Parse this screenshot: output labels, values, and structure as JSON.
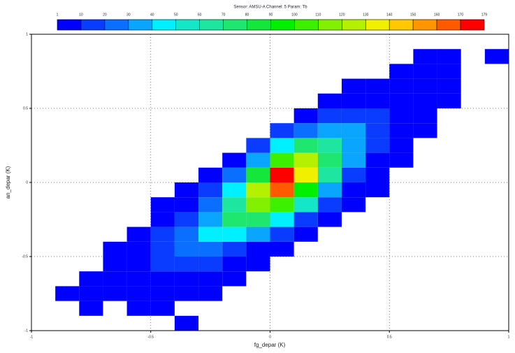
{
  "chart_data": {
    "type": "heatmap2d",
    "title": "Sensor: AMSU-A Channel: 5 Param: Tb",
    "x_label": "fg_depar (K)",
    "y_label": "an_depar (K)",
    "xlim": [
      -1,
      1
    ],
    "ylim": [
      -1,
      1
    ],
    "xticks": [
      -1,
      -0.5,
      0,
      0.5,
      1
    ],
    "yticks": [
      -1,
      -0.5,
      0,
      0.5,
      1
    ],
    "grid": true,
    "x_edges": [
      -1,
      -0.9,
      -0.8,
      -0.7,
      -0.6,
      -0.5,
      -0.4,
      -0.3,
      -0.2,
      -0.1,
      0,
      0.1,
      0.2,
      0.3,
      0.4,
      0.5,
      0.6,
      0.7,
      0.8,
      0.9,
      1
    ],
    "y_edges": [
      -1,
      -0.9,
      -0.8,
      -0.7,
      -0.6,
      -0.5,
      -0.4,
      -0.3,
      -0.2,
      -0.1,
      0,
      0.1,
      0.2,
      0.3,
      0.4,
      0.5,
      0.6,
      0.7,
      0.8,
      0.9,
      1
    ],
    "z": [
      [
        0,
        0,
        0,
        0,
        0,
        0,
        1,
        0,
        0,
        0,
        0,
        0,
        0,
        0,
        0,
        0,
        0,
        0,
        0,
        0
      ],
      [
        0,
        0,
        1,
        0,
        1,
        1,
        0,
        0,
        0,
        0,
        0,
        0,
        0,
        0,
        0,
        0,
        0,
        0,
        0,
        0
      ],
      [
        0,
        1,
        2,
        3,
        4,
        3,
        2,
        1,
        0,
        0,
        0,
        0,
        0,
        0,
        0,
        0,
        0,
        0,
        0,
        0
      ],
      [
        0,
        0,
        2,
        4,
        6,
        8,
        6,
        3,
        1,
        0,
        0,
        0,
        0,
        0,
        0,
        0,
        0,
        0,
        0,
        0
      ],
      [
        0,
        0,
        0,
        3,
        8,
        12,
        14,
        10,
        5,
        2,
        0,
        0,
        0,
        0,
        0,
        0,
        0,
        0,
        0,
        0
      ],
      [
        0,
        0,
        0,
        1,
        6,
        14,
        22,
        25,
        16,
        8,
        3,
        0,
        0,
        0,
        0,
        0,
        0,
        0,
        0,
        0
      ],
      [
        0,
        0,
        0,
        0,
        3,
        10,
        24,
        40,
        45,
        30,
        12,
        4,
        0,
        0,
        0,
        0,
        0,
        0,
        0,
        0
      ],
      [
        0,
        0,
        0,
        0,
        0,
        5,
        15,
        38,
        70,
        75,
        45,
        15,
        4,
        0,
        0,
        0,
        0,
        0,
        0,
        0
      ],
      [
        0,
        0,
        0,
        0,
        0,
        2,
        8,
        22,
        60,
        110,
        100,
        50,
        15,
        3,
        0,
        0,
        0,
        0,
        0,
        0
      ],
      [
        0,
        0,
        0,
        0,
        0,
        0,
        4,
        12,
        40,
        120,
        160,
        90,
        30,
        8,
        2,
        0,
        0,
        0,
        0,
        0
      ],
      [
        0,
        0,
        0,
        0,
        0,
        0,
        0,
        5,
        20,
        80,
        170,
        130,
        60,
        18,
        5,
        0,
        0,
        0,
        0,
        0
      ],
      [
        0,
        0,
        0,
        0,
        0,
        0,
        0,
        0,
        8,
        35,
        100,
        120,
        75,
        30,
        8,
        2,
        0,
        0,
        0,
        0
      ],
      [
        0,
        0,
        0,
        0,
        0,
        0,
        0,
        0,
        0,
        12,
        40,
        75,
        60,
        35,
        12,
        3,
        0,
        0,
        0,
        0
      ],
      [
        0,
        0,
        0,
        0,
        0,
        0,
        0,
        0,
        0,
        0,
        10,
        28,
        38,
        30,
        15,
        5,
        2,
        0,
        0,
        0
      ],
      [
        0,
        0,
        0,
        0,
        0,
        0,
        0,
        0,
        0,
        0,
        0,
        8,
        15,
        18,
        12,
        6,
        2,
        0,
        0,
        0
      ],
      [
        0,
        0,
        0,
        0,
        0,
        0,
        0,
        0,
        0,
        0,
        0,
        0,
        4,
        8,
        8,
        5,
        3,
        1,
        0,
        0
      ],
      [
        0,
        0,
        0,
        0,
        0,
        0,
        0,
        0,
        0,
        0,
        0,
        0,
        0,
        2,
        4,
        3,
        2,
        1,
        0,
        0
      ],
      [
        0,
        0,
        0,
        0,
        0,
        0,
        0,
        0,
        0,
        0,
        0,
        0,
        0,
        0,
        0,
        2,
        2,
        1,
        0,
        0
      ],
      [
        0,
        0,
        0,
        0,
        0,
        0,
        0,
        0,
        0,
        0,
        0,
        0,
        0,
        0,
        0,
        0,
        1,
        1,
        0,
        1
      ],
      [
        0,
        0,
        0,
        0,
        0,
        0,
        0,
        0,
        0,
        0,
        0,
        0,
        0,
        0,
        0,
        0,
        0,
        0,
        0,
        0
      ]
    ],
    "colorbar_ticks": [
      1,
      10,
      20,
      30,
      40,
      50,
      60,
      70,
      80,
      90,
      100,
      110,
      120,
      130,
      140,
      150,
      160,
      170,
      179
    ],
    "colorbar_colors": [
      "#0000ff",
      "#0a3cff",
      "#0a6eff",
      "#0aa5ff",
      "#00f0ff",
      "#14e6c8",
      "#1ee6a0",
      "#1ee66e",
      "#14e63c",
      "#00f000",
      "#3cf000",
      "#82f000",
      "#b4f000",
      "#f0f000",
      "#ffc800",
      "#ff9600",
      "#ff5a00",
      "#ff0000"
    ]
  }
}
